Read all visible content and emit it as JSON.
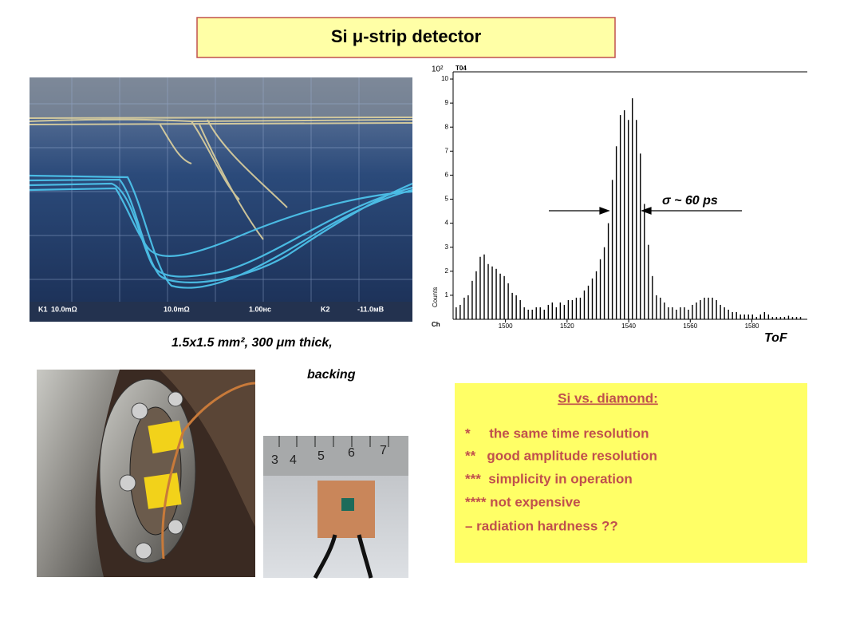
{
  "title": "Si μ-strip detector",
  "caption": {
    "line1": "1.5x1.5 mm², 300 μm thick,",
    "line2": "backing"
  },
  "scope_labels": [
    "K1",
    "10.0mΩ",
    "10.0mΩ",
    "1.00нс",
    "K2",
    "-11.0мВ"
  ],
  "ruler_numbers": [
    "3",
    "4",
    "5",
    "6",
    "7"
  ],
  "comparison": {
    "heading": "Si vs. diamond:",
    "items": [
      "*     the same time resolution",
      "**   good amplitude resolution",
      "***  simplicity in operation",
      "**** not expensive",
      "– radiation hardness ??"
    ]
  },
  "chart_data": {
    "type": "bar",
    "label": "T04",
    "y_scale_label": "10²",
    "ylabel": "Counts",
    "xlabel": "Ch",
    "annotations": {
      "width": "σ ~ 60 ps",
      "name": "ToF"
    },
    "color": "#000000",
    "xlim": [
      1483,
      1598
    ],
    "ylim": [
      0,
      10.3
    ],
    "xticks": [
      1500,
      1520,
      1540,
      1560,
      1580
    ],
    "yticks": [
      1,
      2,
      3,
      4,
      5,
      6,
      7,
      8,
      9,
      10
    ],
    "x": [
      1484.0,
      1485.3,
      1486.6,
      1487.9,
      1489.2,
      1490.5,
      1491.8,
      1493.1,
      1494.4,
      1495.7,
      1497.0,
      1498.3,
      1499.6,
      1500.9,
      1502.2,
      1503.5,
      1504.8,
      1506.1,
      1507.4,
      1508.7,
      1510.0,
      1511.3,
      1512.6,
      1513.9,
      1515.2,
      1516.5,
      1517.8,
      1519.1,
      1520.4,
      1521.7,
      1523.0,
      1524.3,
      1525.6,
      1526.9,
      1528.2,
      1529.5,
      1530.8,
      1532.1,
      1533.4,
      1534.7,
      1536.0,
      1537.3,
      1538.6,
      1539.9,
      1541.2,
      1542.5,
      1543.8,
      1545.1,
      1546.4,
      1547.7,
      1549.0,
      1550.3,
      1551.6,
      1552.9,
      1554.2,
      1555.5,
      1556.8,
      1558.1,
      1559.4,
      1560.7,
      1562.0,
      1563.3,
      1564.6,
      1565.9,
      1567.2,
      1568.5,
      1569.8,
      1571.1,
      1572.4,
      1573.7,
      1575.0,
      1576.3,
      1577.6,
      1578.9,
      1580.2,
      1581.5,
      1582.8,
      1584.1,
      1585.4,
      1586.7,
      1588.0,
      1589.3,
      1590.6,
      1591.9,
      1593.2,
      1594.5,
      1595.8
    ],
    "values": [
      0.5,
      0.6,
      0.9,
      1.0,
      1.6,
      2.0,
      2.6,
      2.7,
      2.3,
      2.2,
      2.1,
      1.9,
      1.8,
      1.5,
      1.1,
      1.0,
      0.8,
      0.5,
      0.4,
      0.4,
      0.5,
      0.5,
      0.4,
      0.6,
      0.7,
      0.5,
      0.7,
      0.6,
      0.8,
      0.8,
      0.9,
      0.9,
      1.2,
      1.4,
      1.7,
      2.0,
      2.5,
      3.0,
      4.0,
      5.8,
      7.2,
      8.5,
      8.7,
      8.3,
      9.2,
      8.3,
      6.9,
      4.8,
      3.1,
      1.8,
      1.0,
      0.9,
      0.7,
      0.5,
      0.5,
      0.4,
      0.5,
      0.5,
      0.4,
      0.6,
      0.7,
      0.8,
      0.9,
      0.9,
      0.9,
      0.8,
      0.6,
      0.5,
      0.4,
      0.3,
      0.3,
      0.2,
      0.2,
      0.2,
      0.2,
      0.1,
      0.2,
      0.3,
      0.2,
      0.1,
      0.1,
      0.1,
      0.1,
      0.15,
      0.1,
      0.1,
      0.1
    ]
  }
}
